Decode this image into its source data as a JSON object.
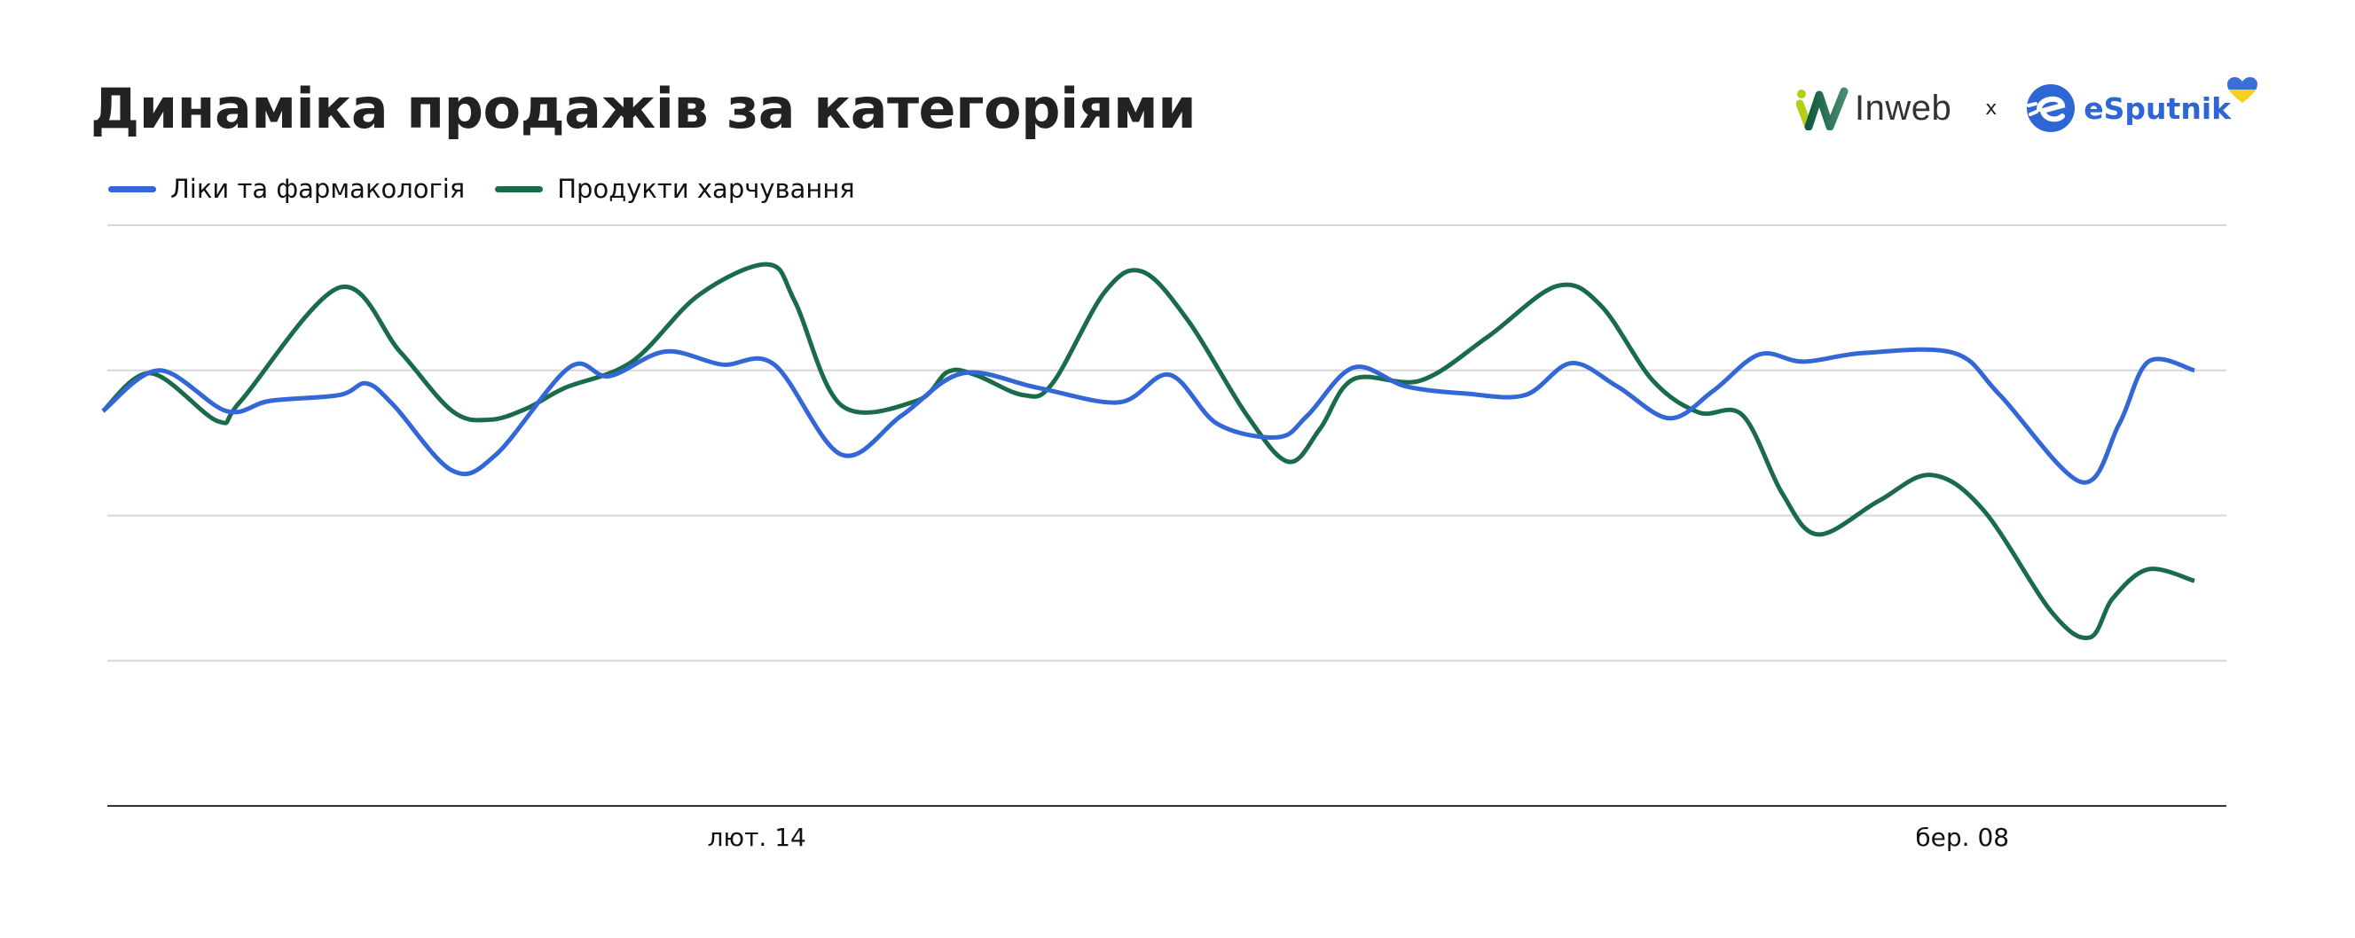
{
  "header": {
    "title": "Динаміка продажів за категоріями",
    "logos": {
      "left": "Inweb",
      "separator": "x",
      "right": "eSputnik"
    }
  },
  "legend": [
    {
      "label": "Ліки та фармакологія",
      "color": "#3366d6"
    },
    {
      "label": "Продукти харчування",
      "color": "#1a6b4a"
    }
  ],
  "colors": {
    "gridline": "#d6d6d6",
    "axis": "#333333",
    "title": "#222222",
    "inweb_green_light": "#b5cc18",
    "inweb_green_dark": "#0f5c3e",
    "esputnik_blue": "#2f66d6",
    "heart_blue": "#3a6fd8",
    "heart_yellow": "#f5d020"
  },
  "chart_data": {
    "type": "line",
    "title": "Динаміка продажів за категоріями",
    "xlabel": "",
    "ylabel": "",
    "x_tick_labels": [
      {
        "label": "лют. 14",
        "pos": 0.305
      },
      {
        "label": "бер. 08",
        "pos": 0.875
      }
    ],
    "y_gridlines": [
      0,
      1,
      2,
      3,
      4
    ],
    "ylim": [
      0,
      4
    ],
    "y_tick_labels_visible": false,
    "grid": true,
    "legend_position": "top-left",
    "smooth": true,
    "series": [
      {
        "name": "Ліки та фармакологія",
        "color": "#3366d6",
        "x": [
          0.0,
          0.027,
          0.059,
          0.08,
          0.113,
          0.126,
          0.139,
          0.167,
          0.188,
          0.223,
          0.242,
          0.269,
          0.296,
          0.321,
          0.353,
          0.382,
          0.411,
          0.447,
          0.486,
          0.51,
          0.533,
          0.562,
          0.576,
          0.598,
          0.623,
          0.652,
          0.68,
          0.702,
          0.724,
          0.749,
          0.77,
          0.792,
          0.813,
          0.842,
          0.885,
          0.907,
          0.946,
          0.964,
          0.978,
          1.0
        ],
        "values": [
          2.72,
          3.0,
          2.72,
          2.79,
          2.83,
          2.91,
          2.76,
          2.31,
          2.42,
          3.02,
          2.96,
          3.13,
          3.04,
          3.04,
          2.42,
          2.69,
          2.98,
          2.88,
          2.78,
          2.97,
          2.63,
          2.54,
          2.69,
          3.02,
          2.89,
          2.84,
          2.83,
          3.05,
          2.89,
          2.67,
          2.86,
          3.11,
          3.06,
          3.12,
          3.12,
          2.83,
          2.23,
          2.63,
          3.06,
          3.0
        ]
      },
      {
        "name": "Продукти харчування",
        "color": "#1a6b4a",
        "x": [
          0.0,
          0.023,
          0.055,
          0.066,
          0.113,
          0.142,
          0.167,
          0.185,
          0.203,
          0.221,
          0.253,
          0.285,
          0.318,
          0.331,
          0.353,
          0.389,
          0.404,
          0.417,
          0.44,
          0.454,
          0.479,
          0.497,
          0.519,
          0.547,
          0.567,
          0.582,
          0.598,
          0.63,
          0.662,
          0.695,
          0.716,
          0.741,
          0.763,
          0.784,
          0.803,
          0.82,
          0.849,
          0.874,
          0.899,
          0.932,
          0.95,
          0.961,
          0.978,
          1.0
        ],
        "values": [
          2.72,
          2.98,
          2.65,
          2.79,
          3.57,
          3.13,
          2.72,
          2.66,
          2.74,
          2.88,
          3.06,
          3.52,
          3.73,
          3.47,
          2.76,
          2.79,
          2.99,
          2.97,
          2.83,
          2.91,
          3.54,
          3.68,
          3.34,
          2.69,
          2.37,
          2.6,
          2.94,
          2.93,
          3.23,
          3.58,
          3.45,
          2.93,
          2.71,
          2.69,
          2.15,
          1.87,
          2.1,
          2.28,
          2.04,
          1.33,
          1.16,
          1.43,
          1.63,
          1.55
        ]
      }
    ]
  }
}
